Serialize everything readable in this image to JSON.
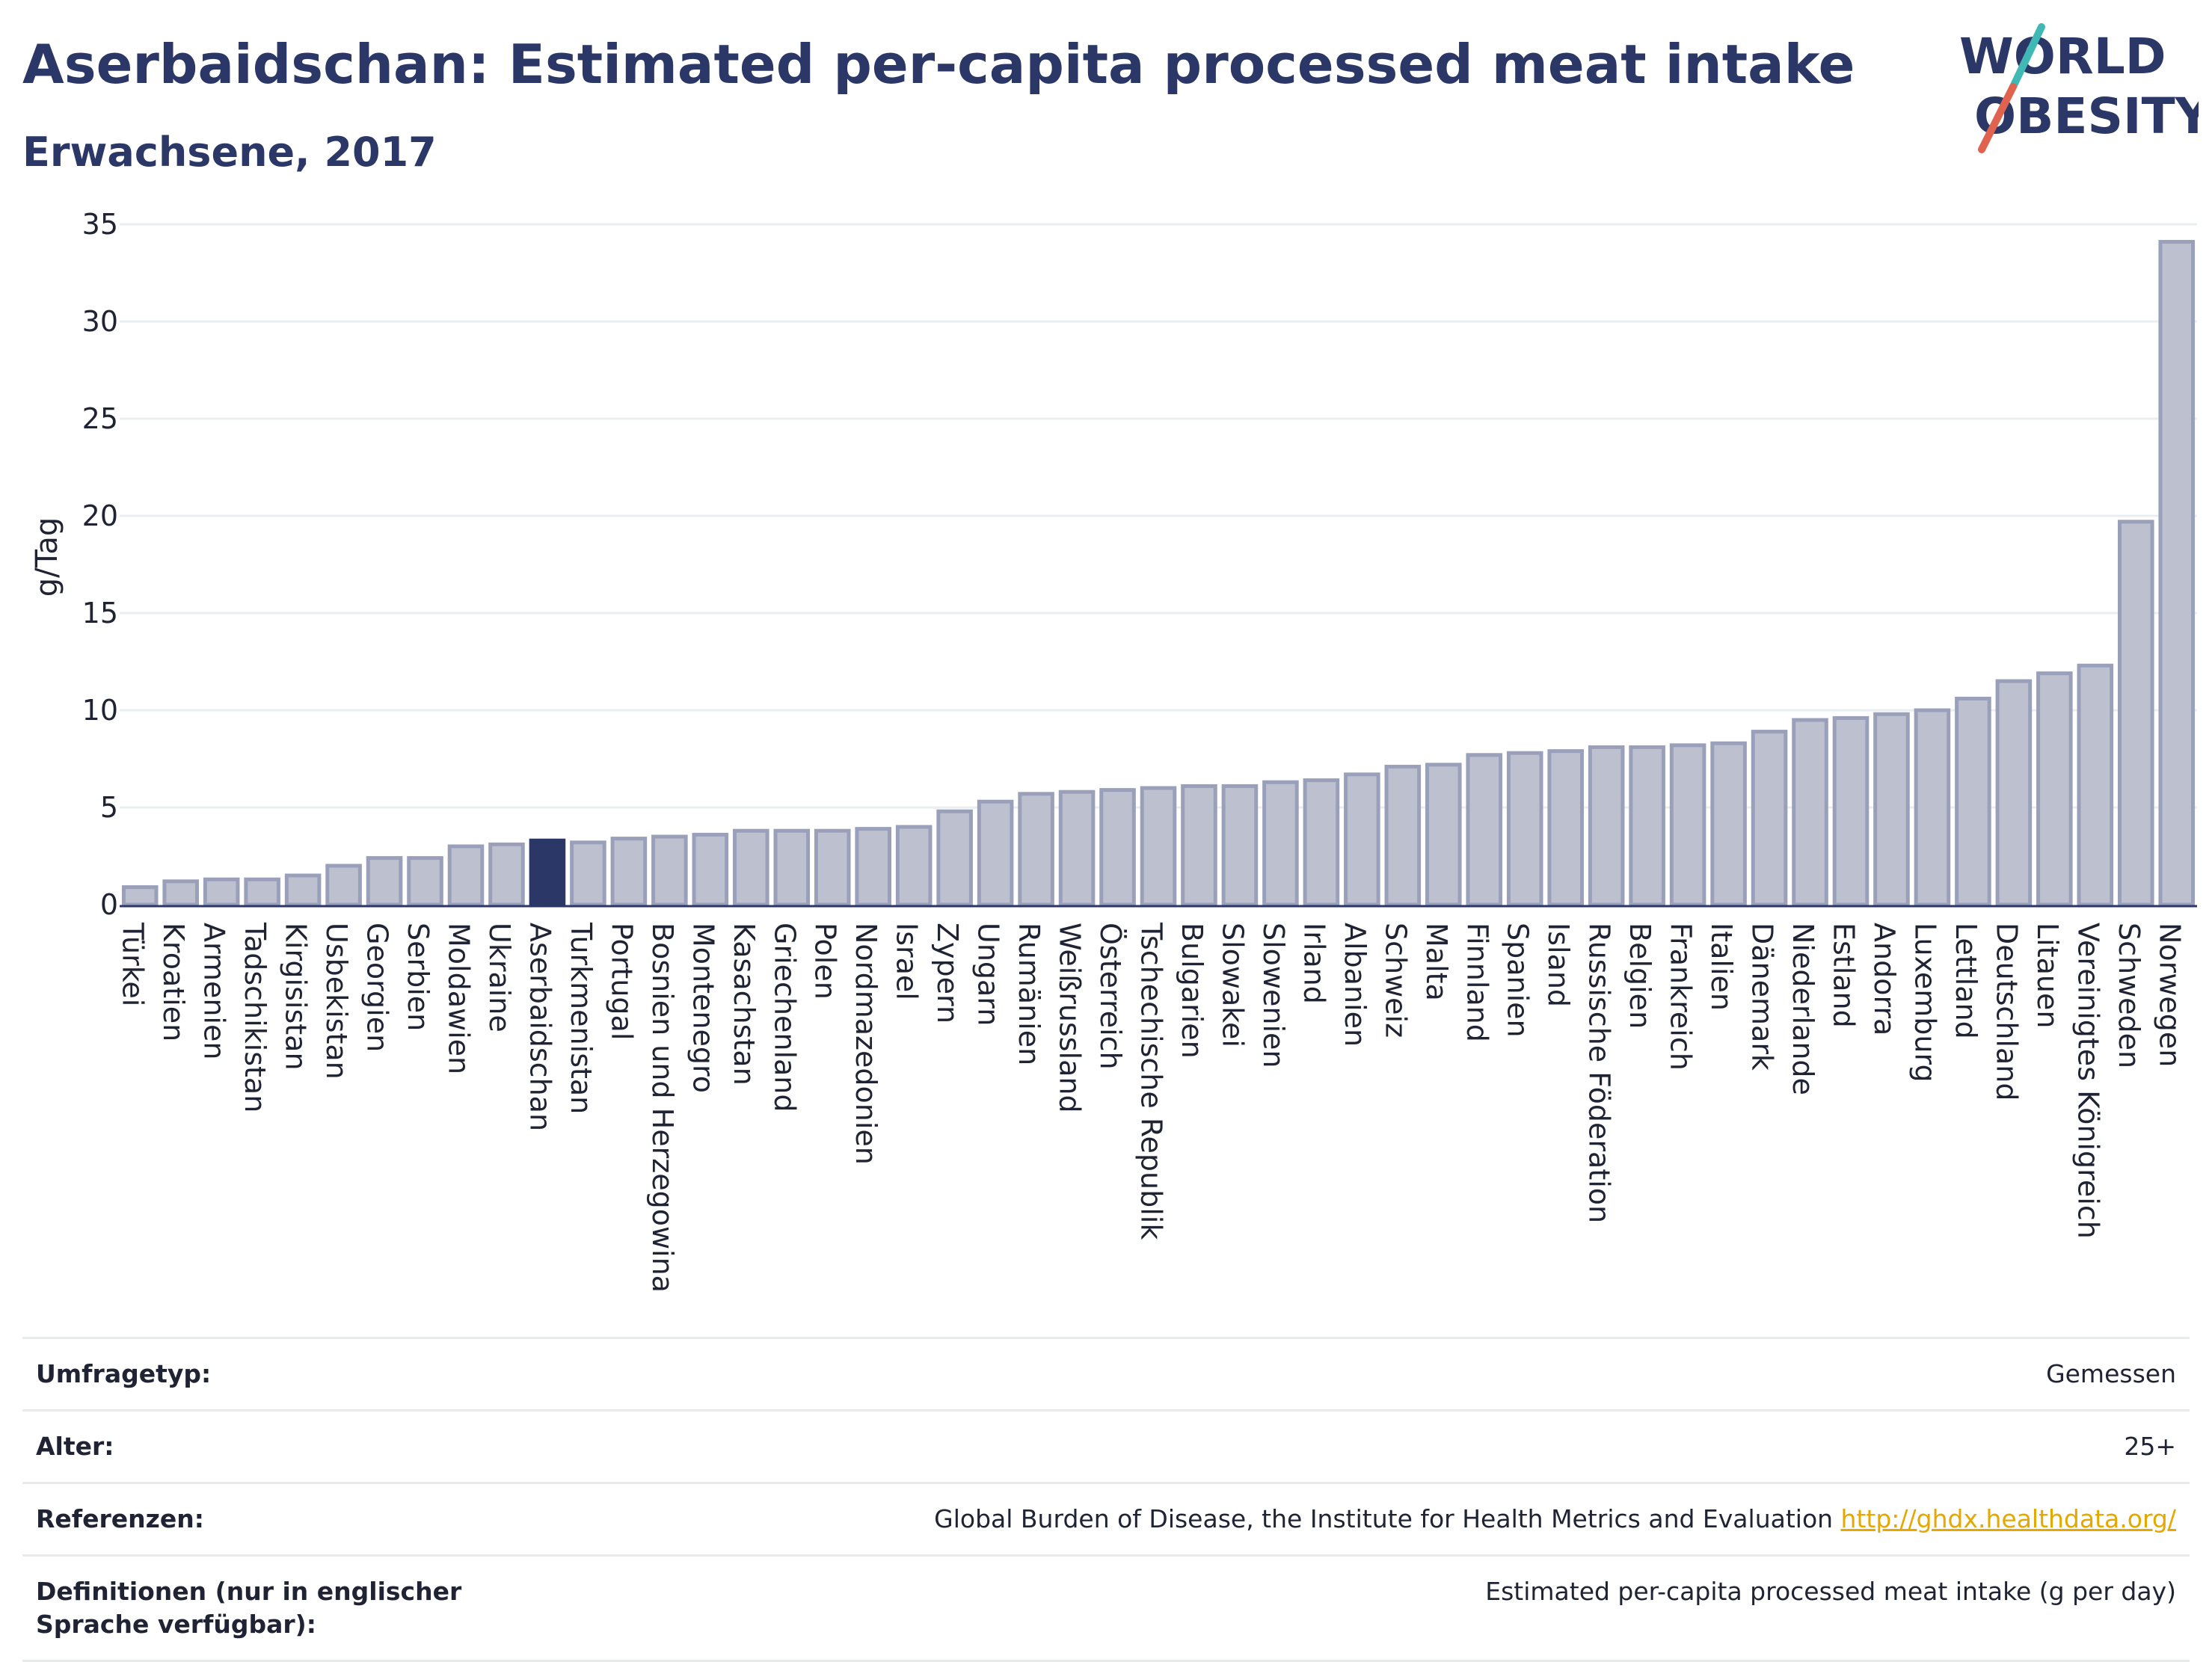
{
  "header": {
    "title": "Aserbaidschan: Estimated per-capita processed meat intake",
    "subtitle": "Erwachsene, 2017"
  },
  "logo": {
    "line1": "WORLD",
    "line2": "OBESITY",
    "text_color": "#2b3766",
    "slash_colors": [
      "#3fb8b6",
      "#e0634f"
    ]
  },
  "colors": {
    "bar_fill": "#bcc0cf",
    "bar_stroke": "#9aa0b9",
    "highlight_fill": "#2b3766",
    "grid": "#e9eef0",
    "axis_line": "#2b3766"
  },
  "chart_data": {
    "type": "bar",
    "ylabel": "g/Tag",
    "ylim": [
      0,
      35
    ],
    "yticks": [
      0,
      5,
      10,
      15,
      20,
      25,
      30,
      35
    ],
    "grid": true,
    "highlight": "Aserbaidschan",
    "categories": [
      "Türkei",
      "Kroatien",
      "Armenien",
      "Tadschikistan",
      "Kirgisistan",
      "Usbekistan",
      "Georgien",
      "Serbien",
      "Moldawien",
      "Ukraine",
      "Aserbaidschan",
      "Turkmenistan",
      "Portugal",
      "Bosnien und Herzegowina",
      "Montenegro",
      "Kasachstan",
      "Griechenland",
      "Polen",
      "Nordmazedonien",
      "Israel",
      "Zypern",
      "Ungarn",
      "Rumänien",
      "Weißrussland",
      "Österreich",
      "Tschechische Republik",
      "Bulgarien",
      "Slowakei",
      "Slowenien",
      "Irland",
      "Albanien",
      "Schweiz",
      "Malta",
      "Finnland",
      "Spanien",
      "Island",
      "Russische Föderation",
      "Belgien",
      "Frankreich",
      "Italien",
      "Dänemark",
      "Niederlande",
      "Estland",
      "Andorra",
      "Luxemburg",
      "Lettland",
      "Deutschland",
      "Litauen",
      "Vereinigtes Königreich",
      "Schweden",
      "Norwegen"
    ],
    "values": [
      0.9,
      1.2,
      1.3,
      1.3,
      1.5,
      2.0,
      2.4,
      2.4,
      3.0,
      3.1,
      3.3,
      3.2,
      3.4,
      3.5,
      3.6,
      3.8,
      3.8,
      3.8,
      3.9,
      4.0,
      4.8,
      5.3,
      5.7,
      5.8,
      5.9,
      6.0,
      6.1,
      6.1,
      6.3,
      6.4,
      6.7,
      7.1,
      7.2,
      7.7,
      7.8,
      7.9,
      8.1,
      8.1,
      8.2,
      8.3,
      8.9,
      9.5,
      9.6,
      9.8,
      10.0,
      10.6,
      11.5,
      11.9,
      12.3,
      19.7,
      34.1
    ]
  },
  "info": {
    "rows": [
      {
        "key": "Umfragetyp:",
        "value": "Gemessen"
      },
      {
        "key": "Alter:",
        "value": "25+"
      },
      {
        "key": "Referenzen:",
        "value": "Global Burden of Disease, the Institute for Health Metrics and Evaluation",
        "link": "http://ghdx.healthdata.org/"
      },
      {
        "key": "Definitionen (nur in englischer Sprache verfügbar):",
        "value": "Estimated per-capita processed meat intake (g per day)"
      }
    ]
  }
}
